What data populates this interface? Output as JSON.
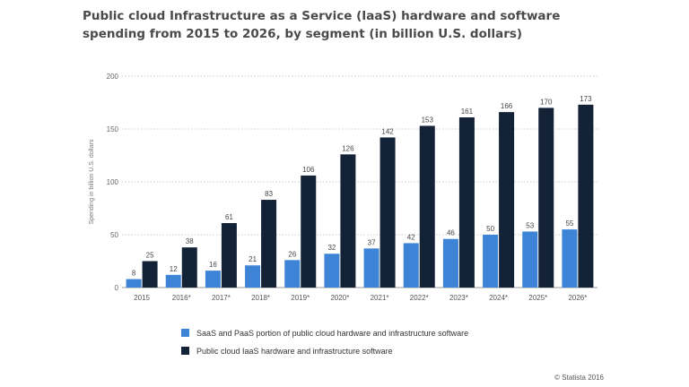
{
  "chart_data": {
    "type": "bar",
    "title": "Public cloud Infrastructure as a Service (IaaS) hardware and software spending from 2015 to 2026, by segment (in billion U.S. dollars)",
    "ylabel": "Spending in billion U.S. dollars",
    "xlabel": "",
    "ylim": [
      0,
      200
    ],
    "yticks": [
      0,
      50,
      100,
      150,
      200
    ],
    "grid": true,
    "legend_position": "bottom",
    "categories": [
      "2015",
      "2016*",
      "2017*",
      "2018*",
      "2019*",
      "2020*",
      "2021*",
      "2022*",
      "2023*",
      "2024*",
      "2025*",
      "2026*"
    ],
    "series": [
      {
        "name": "SaaS and PaaS portion of public cloud hardware and infrastructure software",
        "color": "#3d84d6",
        "values": [
          8,
          12,
          16,
          21,
          26,
          32,
          37,
          42,
          46,
          50,
          53,
          55
        ]
      },
      {
        "name": "Public cloud IaaS hardware and infrastructure software",
        "color": "#142237",
        "values": [
          25,
          38,
          61,
          83,
          106,
          126,
          142,
          153,
          161,
          166,
          170,
          173
        ]
      }
    ]
  },
  "credit": "© Statista 2016"
}
